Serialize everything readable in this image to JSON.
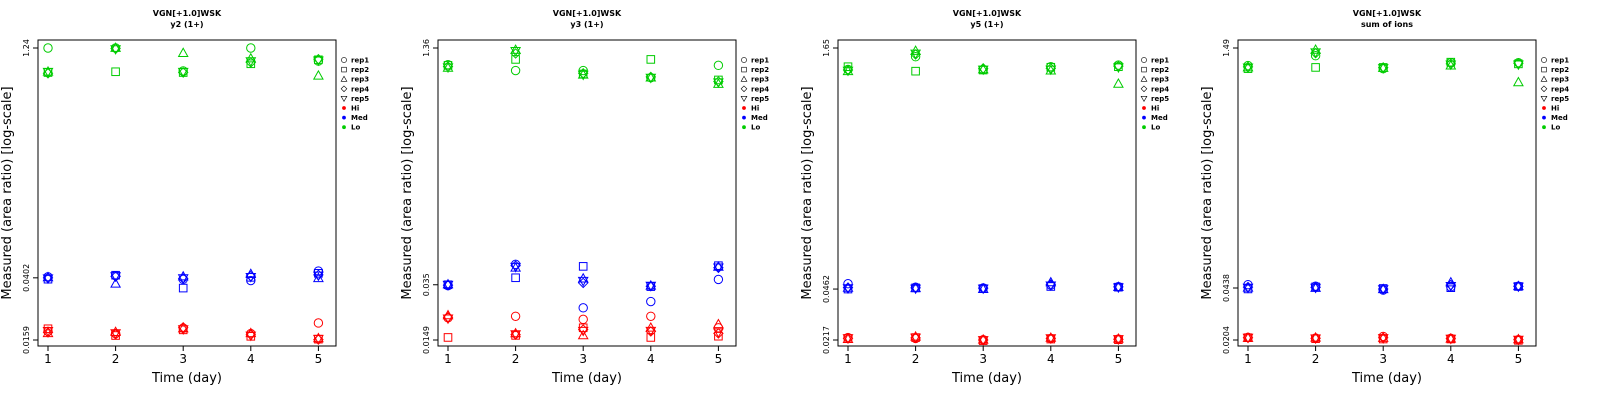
{
  "chart_data": [
    {
      "type": "scatter",
      "title": "VGN[+1.0]WSK",
      "subtitle": "y2 (1+)",
      "xlabel": "Time (day)",
      "ylabel": "Measured (area ratio) [log-scale]",
      "y_scale": "log",
      "x_ticks": [
        1,
        2,
        3,
        4,
        5
      ],
      "y_ticks": [
        "0.0159",
        "0.0402",
        "1.24"
      ],
      "ylim": [
        0.0159,
        1.24
      ],
      "legend": {
        "position": "right",
        "entries": [
          "rep1",
          "rep2",
          "rep3",
          "rep4",
          "rep5",
          "Hi",
          "Med",
          "Lo"
        ]
      },
      "series": [
        {
          "name": "Hi",
          "color": "#ff0000",
          "points": [
            {
              "rep": "rep1",
              "values": [
                0.0181,
                0.0175,
                0.019,
                0.0175,
                0.0205
              ]
            },
            {
              "rep": "rep2",
              "values": [
                0.0188,
                0.017,
                0.0185,
                0.0168,
                0.0161
              ]
            },
            {
              "rep": "rep3",
              "values": [
                0.0176,
                0.0179,
                0.0189,
                0.0176,
                0.0163
              ]
            },
            {
              "rep": "rep4",
              "values": [
                0.0178,
                0.0173,
                0.0192,
                0.0172,
                0.016
              ]
            },
            {
              "rep": "rep5",
              "values": [
                0.0182,
                0.0176,
                0.0187,
                0.017,
                0.0162
              ]
            }
          ]
        },
        {
          "name": "Med",
          "color": "#0000ff",
          "points": [
            {
              "rep": "rep1",
              "values": [
                0.0408,
                0.0415,
                0.0393,
                0.0386,
                0.0445
              ]
            },
            {
              "rep": "rep2",
              "values": [
                0.0394,
                0.0418,
                0.0345,
                0.0405,
                0.043
              ]
            },
            {
              "rep": "rep3",
              "values": [
                0.0405,
                0.0368,
                0.041,
                0.0425,
                0.04
              ]
            },
            {
              "rep": "rep4",
              "values": [
                0.0402,
                0.041,
                0.0398,
                0.0412,
                0.042
              ]
            },
            {
              "rep": "rep5",
              "values": [
                0.0399,
                0.0412,
                0.04,
                0.0408,
                0.0416
              ]
            }
          ]
        },
        {
          "name": "Lo",
          "color": "#00cc00",
          "points": [
            {
              "rep": "rep1",
              "values": [
                1.24,
                1.24,
                0.88,
                1.24,
                1.02
              ]
            },
            {
              "rep": "rep2",
              "values": [
                0.86,
                0.87,
                0.86,
                0.98,
                1.04
              ]
            },
            {
              "rep": "rep3",
              "values": [
                0.87,
                1.24,
                1.15,
                1.06,
                0.82
              ]
            },
            {
              "rep": "rep4",
              "values": [
                0.85,
                1.23,
                0.86,
                1.0,
                1.05
              ]
            },
            {
              "rep": "rep5",
              "values": [
                0.87,
                1.22,
                0.87,
                1.02,
                1.03
              ]
            }
          ]
        }
      ]
    },
    {
      "type": "scatter",
      "title": "VGN[+1.0]WSK",
      "subtitle": "y3 (1+)",
      "xlabel": "Time (day)",
      "ylabel": "Measured (area ratio) [log-scale]",
      "y_scale": "log",
      "x_ticks": [
        1,
        2,
        3,
        4,
        5
      ],
      "y_ticks": [
        "0.0149",
        "0.035",
        "1.36"
      ],
      "ylim": [
        0.0149,
        1.36
      ],
      "legend": {
        "position": "right",
        "entries": [
          "rep1",
          "rep2",
          "rep3",
          "rep4",
          "rep5",
          "Hi",
          "Med",
          "Lo"
        ]
      },
      "series": [
        {
          "name": "Hi",
          "color": "#ff0000",
          "points": [
            {
              "rep": "rep1",
              "values": [
                0.021,
                0.0215,
                0.0205,
                0.0215,
                0.018
              ]
            },
            {
              "rep": "rep2",
              "values": [
                0.0155,
                0.016,
                0.018,
                0.0155,
                0.0158
              ]
            },
            {
              "rep": "rep3",
              "values": [
                0.0218,
                0.0165,
                0.016,
                0.018,
                0.019
              ]
            },
            {
              "rep": "rep4",
              "values": [
                0.0212,
                0.0162,
                0.0175,
                0.017,
                0.0165
              ]
            },
            {
              "rep": "rep5",
              "values": [
                0.0208,
                0.0163,
                0.0172,
                0.0172,
                0.0168
              ]
            }
          ]
        },
        {
          "name": "Med",
          "color": "#0000ff",
          "points": [
            {
              "rep": "rep1",
              "values": [
                0.0345,
                0.048,
                0.0245,
                0.027,
                0.038
              ]
            },
            {
              "rep": "rep2",
              "values": [
                0.035,
                0.039,
                0.0465,
                0.034,
                0.047
              ]
            },
            {
              "rep": "rep3",
              "values": [
                0.0352,
                0.0455,
                0.0385,
                0.0345,
                0.0462
              ]
            },
            {
              "rep": "rep4",
              "values": [
                0.0348,
                0.047,
                0.036,
                0.0342,
                0.0455
              ]
            },
            {
              "rep": "rep5",
              "values": [
                0.035,
                0.0462,
                0.0372,
                0.0345,
                0.0458
              ]
            }
          ]
        },
        {
          "name": "Lo",
          "color": "#00cc00",
          "points": [
            {
              "rep": "rep1",
              "values": [
                1.05,
                0.96,
                0.96,
                0.86,
                1.04
              ]
            },
            {
              "rep": "rep2",
              "values": [
                1.04,
                1.14,
                0.91,
                1.14,
                0.83
              ]
            },
            {
              "rep": "rep3",
              "values": [
                1.0,
                1.32,
                0.9,
                0.86,
                0.78
              ]
            },
            {
              "rep": "rep4",
              "values": [
                1.02,
                1.25,
                0.92,
                0.87,
                0.81
              ]
            },
            {
              "rep": "rep5",
              "values": [
                1.01,
                1.3,
                0.9,
                0.86,
                0.8
              ]
            }
          ]
        }
      ]
    },
    {
      "type": "scatter",
      "title": "VGN[+1.0]WSK",
      "subtitle": "y5 (1+)",
      "xlabel": "Time (day)",
      "ylabel": "Measured (area ratio) [log-scale]",
      "y_scale": "log",
      "x_ticks": [
        1,
        2,
        3,
        4,
        5
      ],
      "y_ticks": [
        "0.0217",
        "0.0462",
        "1.65"
      ],
      "ylim": [
        0.0217,
        1.65
      ],
      "legend": {
        "position": "right",
        "entries": [
          "rep1",
          "rep2",
          "rep3",
          "rep4",
          "rep5",
          "Hi",
          "Med",
          "Lo"
        ]
      },
      "series": [
        {
          "name": "Hi",
          "color": "#ff0000",
          "points": [
            {
              "rep": "rep1",
              "values": [
                0.0225,
                0.0222,
                0.0218,
                0.0222,
                0.022
              ]
            },
            {
              "rep": "rep2",
              "values": [
                0.0222,
                0.0225,
                0.0215,
                0.022,
                0.0218
              ]
            },
            {
              "rep": "rep3",
              "values": [
                0.022,
                0.0228,
                0.0218,
                0.0224,
                0.0221
              ]
            },
            {
              "rep": "rep4",
              "values": [
                0.0222,
                0.0224,
                0.0217,
                0.0222,
                0.0219
              ]
            },
            {
              "rep": "rep5",
              "values": [
                0.0223,
                0.0225,
                0.0217,
                0.0223,
                0.022
              ]
            }
          ]
        },
        {
          "name": "Med",
          "color": "#0000ff",
          "points": [
            {
              "rep": "rep1",
              "values": [
                0.05,
                0.0475,
                0.047,
                0.049,
                0.0478
              ]
            },
            {
              "rep": "rep2",
              "values": [
                0.0462,
                0.047,
                0.0465,
                0.048,
                0.0475
              ]
            },
            {
              "rep": "rep3",
              "values": [
                0.047,
                0.0468,
                0.0462,
                0.051,
                0.0476
              ]
            },
            {
              "rep": "rep4",
              "values": [
                0.0472,
                0.047,
                0.0468,
                0.0495,
                0.0477
              ]
            },
            {
              "rep": "rep5",
              "values": [
                0.0468,
                0.0466,
                0.0466,
                0.0488,
                0.0474
              ]
            }
          ]
        },
        {
          "name": "Lo",
          "color": "#00cc00",
          "points": [
            {
              "rep": "rep1",
              "values": [
                1.2,
                1.45,
                1.2,
                1.25,
                1.28
              ]
            },
            {
              "rep": "rep2",
              "values": [
                1.25,
                1.17,
                1.19,
                1.24,
                1.25
              ]
            },
            {
              "rep": "rep3",
              "values": [
                1.17,
                1.58,
                1.2,
                1.18,
                0.97
              ]
            },
            {
              "rep": "rep4",
              "values": [
                1.19,
                1.5,
                1.22,
                1.22,
                1.26
              ]
            },
            {
              "rep": "rep5",
              "values": [
                1.18,
                1.52,
                1.2,
                1.2,
                1.24
              ]
            }
          ]
        }
      ]
    },
    {
      "type": "scatter",
      "title": "VGN[+1.0]WSK",
      "subtitle": "sum of ions",
      "xlabel": "Time (day)",
      "ylabel": "Measured (area ratio) [log-scale]",
      "y_scale": "log",
      "x_ticks": [
        1,
        2,
        3,
        4,
        5
      ],
      "y_ticks": [
        "0.0204",
        "0.0438",
        "1.49"
      ],
      "ylim": [
        0.0204,
        1.49
      ],
      "legend": {
        "position": "right",
        "entries": [
          "rep1",
          "rep2",
          "rep3",
          "rep4",
          "rep5",
          "Hi",
          "Med",
          "Lo"
        ]
      },
      "series": [
        {
          "name": "Hi",
          "color": "#ff0000",
          "points": [
            {
              "rep": "rep1",
              "values": [
                0.0212,
                0.021,
                0.0215,
                0.0209,
                0.0205
              ]
            },
            {
              "rep": "rep2",
              "values": [
                0.0211,
                0.0208,
                0.0207,
                0.0207,
                0.0203
              ]
            },
            {
              "rep": "rep3",
              "values": [
                0.021,
                0.0211,
                0.021,
                0.0208,
                0.0206
              ]
            },
            {
              "rep": "rep4",
              "values": [
                0.0211,
                0.0209,
                0.0211,
                0.0208,
                0.0205
              ]
            },
            {
              "rep": "rep5",
              "values": [
                0.0211,
                0.0209,
                0.021,
                0.0208,
                0.0205
              ]
            }
          ]
        },
        {
          "name": "Med",
          "color": "#0000ff",
          "points": [
            {
              "rep": "rep1",
              "values": [
                0.046,
                0.045,
                0.0425,
                0.0445,
                0.045
              ]
            },
            {
              "rep": "rep2",
              "values": [
                0.0432,
                0.0445,
                0.0435,
                0.044,
                0.0448
              ]
            },
            {
              "rep": "rep3",
              "values": [
                0.044,
                0.0438,
                0.043,
                0.0475,
                0.045
              ]
            },
            {
              "rep": "rep4",
              "values": [
                0.0444,
                0.0442,
                0.0432,
                0.0458,
                0.0449
              ]
            },
            {
              "rep": "rep5",
              "values": [
                0.044,
                0.044,
                0.0431,
                0.0452,
                0.0448
              ]
            }
          ]
        },
        {
          "name": "Lo",
          "color": "#00cc00",
          "points": [
            {
              "rep": "rep1",
              "values": [
                1.15,
                1.33,
                1.1,
                1.2,
                1.2
              ]
            },
            {
              "rep": "rep2",
              "values": [
                1.1,
                1.12,
                1.12,
                1.21,
                1.18
              ]
            },
            {
              "rep": "rep3",
              "values": [
                1.12,
                1.45,
                1.11,
                1.15,
                0.9
              ]
            },
            {
              "rep": "rep4",
              "values": [
                1.13,
                1.38,
                1.12,
                1.18,
                1.19
              ]
            },
            {
              "rep": "rep5",
              "values": [
                1.12,
                1.4,
                1.11,
                1.17,
                1.17
              ]
            }
          ]
        }
      ]
    }
  ]
}
